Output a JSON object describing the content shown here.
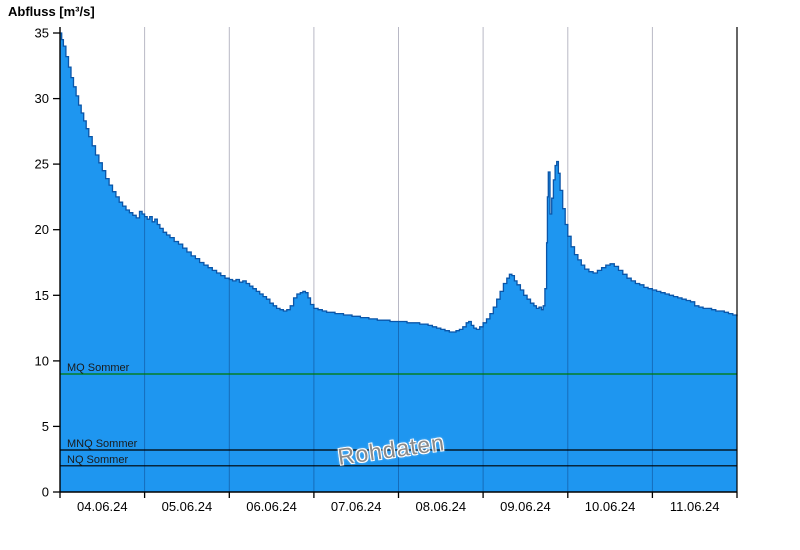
{
  "colors": {
    "area_fill": "#1E96F0",
    "area_stroke": "#0A55A8",
    "grid": "rgba(0,0,48,0.28)",
    "axis": "#000000",
    "mq_line": "#007A00",
    "ref_line": "#000000",
    "ref_label": "#1a1a1a",
    "watermark": "#8a8a8a",
    "tick_label": "#000000"
  },
  "chart_data": {
    "type": "area",
    "ylabel": "Abfluss [m³/s]",
    "watermark": "Rohdaten",
    "xlim": [
      0,
      8
    ],
    "ylim": [
      0,
      35
    ],
    "y_ticks": [
      0,
      5,
      10,
      15,
      20,
      25,
      30,
      35
    ],
    "x_day_labels": [
      "04.06.24",
      "05.06.24",
      "06.06.24",
      "07.06.24",
      "08.06.24",
      "09.06.24",
      "10.06.24",
      "11.06.24"
    ],
    "reference_lines": [
      {
        "label": "MQ Sommer",
        "value": 9.0,
        "color": "#007A00"
      },
      {
        "label": "MNQ Sommer",
        "value": 3.2,
        "color": "#000000"
      },
      {
        "label": "NQ Sommer",
        "value": 2.0,
        "color": "#000000"
      }
    ],
    "series": [
      {
        "name": "Abfluss Rohdaten",
        "points": [
          [
            0.0,
            35.0
          ],
          [
            0.02,
            34.5
          ],
          [
            0.04,
            34.0
          ],
          [
            0.07,
            33.2
          ],
          [
            0.1,
            32.4
          ],
          [
            0.13,
            31.6
          ],
          [
            0.16,
            30.9
          ],
          [
            0.19,
            30.2
          ],
          [
            0.22,
            29.5
          ],
          [
            0.25,
            28.9
          ],
          [
            0.28,
            28.3
          ],
          [
            0.31,
            27.7
          ],
          [
            0.34,
            27.1
          ],
          [
            0.38,
            26.4
          ],
          [
            0.42,
            25.7
          ],
          [
            0.46,
            25.1
          ],
          [
            0.5,
            24.5
          ],
          [
            0.54,
            23.9
          ],
          [
            0.58,
            23.4
          ],
          [
            0.62,
            22.9
          ],
          [
            0.66,
            22.5
          ],
          [
            0.7,
            22.1
          ],
          [
            0.74,
            21.8
          ],
          [
            0.78,
            21.5
          ],
          [
            0.82,
            21.3
          ],
          [
            0.86,
            21.1
          ],
          [
            0.9,
            20.9
          ],
          [
            0.94,
            21.4
          ],
          [
            0.97,
            21.2
          ],
          [
            1.0,
            21.0
          ],
          [
            1.03,
            20.8
          ],
          [
            1.06,
            21.0
          ],
          [
            1.09,
            20.6
          ],
          [
            1.12,
            20.8
          ],
          [
            1.15,
            20.4
          ],
          [
            1.18,
            20.1
          ],
          [
            1.22,
            19.8
          ],
          [
            1.26,
            19.6
          ],
          [
            1.3,
            19.4
          ],
          [
            1.35,
            19.1
          ],
          [
            1.4,
            18.9
          ],
          [
            1.45,
            18.6
          ],
          [
            1.5,
            18.3
          ],
          [
            1.55,
            18.0
          ],
          [
            1.6,
            17.8
          ],
          [
            1.65,
            17.5
          ],
          [
            1.7,
            17.3
          ],
          [
            1.75,
            17.1
          ],
          [
            1.8,
            16.9
          ],
          [
            1.85,
            16.7
          ],
          [
            1.9,
            16.5
          ],
          [
            1.95,
            16.3
          ],
          [
            2.0,
            16.2
          ],
          [
            2.04,
            16.1
          ],
          [
            2.08,
            16.2
          ],
          [
            2.12,
            16.0
          ],
          [
            2.16,
            16.1
          ],
          [
            2.2,
            15.9
          ],
          [
            2.24,
            15.7
          ],
          [
            2.28,
            15.5
          ],
          [
            2.32,
            15.3
          ],
          [
            2.36,
            15.1
          ],
          [
            2.4,
            14.9
          ],
          [
            2.44,
            14.7
          ],
          [
            2.48,
            14.4
          ],
          [
            2.52,
            14.2
          ],
          [
            2.56,
            14.0
          ],
          [
            2.6,
            13.9
          ],
          [
            2.64,
            13.8
          ],
          [
            2.68,
            13.9
          ],
          [
            2.72,
            14.2
          ],
          [
            2.76,
            14.8
          ],
          [
            2.8,
            15.1
          ],
          [
            2.84,
            15.2
          ],
          [
            2.87,
            15.3
          ],
          [
            2.9,
            15.2
          ],
          [
            2.93,
            14.8
          ],
          [
            2.96,
            14.3
          ],
          [
            3.0,
            14.0
          ],
          [
            3.05,
            13.9
          ],
          [
            3.1,
            13.8
          ],
          [
            3.15,
            13.7
          ],
          [
            3.2,
            13.7
          ],
          [
            3.25,
            13.6
          ],
          [
            3.3,
            13.6
          ],
          [
            3.35,
            13.5
          ],
          [
            3.4,
            13.5
          ],
          [
            3.45,
            13.4
          ],
          [
            3.5,
            13.4
          ],
          [
            3.55,
            13.3
          ],
          [
            3.6,
            13.3
          ],
          [
            3.65,
            13.2
          ],
          [
            3.7,
            13.2
          ],
          [
            3.75,
            13.1
          ],
          [
            3.8,
            13.1
          ],
          [
            3.85,
            13.1
          ],
          [
            3.9,
            13.0
          ],
          [
            3.95,
            13.0
          ],
          [
            4.0,
            13.0
          ],
          [
            4.05,
            13.0
          ],
          [
            4.1,
            12.9
          ],
          [
            4.15,
            12.9
          ],
          [
            4.2,
            12.9
          ],
          [
            4.25,
            12.8
          ],
          [
            4.3,
            12.8
          ],
          [
            4.35,
            12.7
          ],
          [
            4.4,
            12.6
          ],
          [
            4.45,
            12.5
          ],
          [
            4.5,
            12.4
          ],
          [
            4.55,
            12.3
          ],
          [
            4.6,
            12.2
          ],
          [
            4.64,
            12.2
          ],
          [
            4.68,
            12.3
          ],
          [
            4.72,
            12.4
          ],
          [
            4.76,
            12.6
          ],
          [
            4.8,
            12.9
          ],
          [
            4.83,
            13.0
          ],
          [
            4.86,
            12.7
          ],
          [
            4.89,
            12.5
          ],
          [
            4.92,
            12.4
          ],
          [
            4.96,
            12.6
          ],
          [
            5.0,
            12.9
          ],
          [
            5.04,
            13.2
          ],
          [
            5.08,
            13.6
          ],
          [
            5.12,
            14.1
          ],
          [
            5.16,
            14.7
          ],
          [
            5.2,
            15.3
          ],
          [
            5.24,
            15.9
          ],
          [
            5.28,
            16.3
          ],
          [
            5.31,
            16.6
          ],
          [
            5.34,
            16.5
          ],
          [
            5.37,
            16.1
          ],
          [
            5.4,
            15.8
          ],
          [
            5.44,
            15.4
          ],
          [
            5.48,
            15.0
          ],
          [
            5.52,
            14.7
          ],
          [
            5.56,
            14.4
          ],
          [
            5.6,
            14.2
          ],
          [
            5.63,
            14.0
          ],
          [
            5.66,
            14.1
          ],
          [
            5.69,
            13.9
          ],
          [
            5.71,
            14.2
          ],
          [
            5.73,
            15.5
          ],
          [
            5.75,
            19.0
          ],
          [
            5.76,
            22.5
          ],
          [
            5.77,
            24.4
          ],
          [
            5.79,
            21.2
          ],
          [
            5.81,
            22.4
          ],
          [
            5.83,
            23.8
          ],
          [
            5.85,
            24.9
          ],
          [
            5.87,
            25.2
          ],
          [
            5.89,
            24.3
          ],
          [
            5.91,
            23.0
          ],
          [
            5.94,
            21.6
          ],
          [
            5.97,
            20.4
          ],
          [
            6.0,
            19.5
          ],
          [
            6.04,
            18.7
          ],
          [
            6.08,
            18.1
          ],
          [
            6.12,
            17.7
          ],
          [
            6.16,
            17.3
          ],
          [
            6.2,
            17.0
          ],
          [
            6.25,
            16.8
          ],
          [
            6.3,
            16.7
          ],
          [
            6.35,
            16.9
          ],
          [
            6.4,
            17.1
          ],
          [
            6.45,
            17.3
          ],
          [
            6.5,
            17.4
          ],
          [
            6.55,
            17.2
          ],
          [
            6.6,
            16.9
          ],
          [
            6.65,
            16.6
          ],
          [
            6.7,
            16.3
          ],
          [
            6.75,
            16.1
          ],
          [
            6.8,
            15.9
          ],
          [
            6.85,
            15.8
          ],
          [
            6.9,
            15.6
          ],
          [
            6.95,
            15.5
          ],
          [
            7.0,
            15.4
          ],
          [
            7.05,
            15.3
          ],
          [
            7.1,
            15.2
          ],
          [
            7.15,
            15.1
          ],
          [
            7.2,
            15.0
          ],
          [
            7.25,
            14.9
          ],
          [
            7.3,
            14.8
          ],
          [
            7.35,
            14.7
          ],
          [
            7.4,
            14.6
          ],
          [
            7.45,
            14.5
          ],
          [
            7.5,
            14.2
          ],
          [
            7.55,
            14.1
          ],
          [
            7.6,
            14.0
          ],
          [
            7.65,
            14.0
          ],
          [
            7.7,
            13.9
          ],
          [
            7.75,
            13.8
          ],
          [
            7.8,
            13.8
          ],
          [
            7.85,
            13.7
          ],
          [
            7.9,
            13.6
          ],
          [
            7.95,
            13.5
          ],
          [
            8.0,
            13.4
          ]
        ]
      }
    ]
  }
}
